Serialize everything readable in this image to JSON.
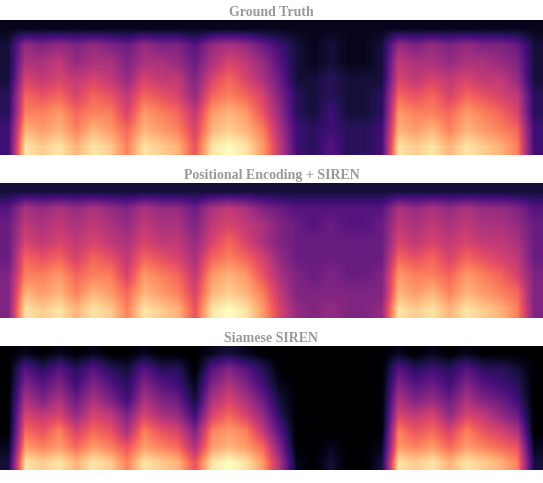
{
  "chart_data": [
    {
      "type": "heatmap",
      "title": "Ground Truth",
      "tick_labels": false,
      "cells": [
        [
          0.2,
          0.9,
          0.85,
          0.9,
          0.8,
          0.9,
          0.85,
          0.7,
          0.9,
          0.85,
          0.8,
          0.6,
          0.9,
          0.95,
          0.9,
          0.75,
          0.5,
          0.2,
          0.15,
          0.25,
          0.15,
          0.15,
          0.2,
          0.9,
          0.85,
          0.9,
          0.8,
          0.9,
          0.85,
          0.8,
          0.7,
          0.2
        ],
        [
          0.2,
          0.8,
          0.75,
          0.8,
          0.7,
          0.8,
          0.75,
          0.65,
          0.8,
          0.75,
          0.7,
          0.55,
          0.8,
          0.85,
          0.8,
          0.7,
          0.45,
          0.2,
          0.15,
          0.2,
          0.15,
          0.15,
          0.2,
          0.8,
          0.75,
          0.8,
          0.7,
          0.8,
          0.75,
          0.7,
          0.65,
          0.2
        ],
        [
          0.15,
          0.7,
          0.7,
          0.75,
          0.65,
          0.7,
          0.7,
          0.55,
          0.75,
          0.7,
          0.65,
          0.5,
          0.75,
          0.8,
          0.75,
          0.6,
          0.4,
          0.15,
          0.1,
          0.2,
          0.1,
          0.1,
          0.15,
          0.75,
          0.7,
          0.7,
          0.65,
          0.75,
          0.7,
          0.65,
          0.55,
          0.15
        ],
        [
          0.15,
          0.65,
          0.6,
          0.65,
          0.55,
          0.65,
          0.6,
          0.5,
          0.65,
          0.6,
          0.55,
          0.4,
          0.65,
          0.7,
          0.65,
          0.55,
          0.35,
          0.15,
          0.1,
          0.15,
          0.1,
          0.1,
          0.15,
          0.65,
          0.6,
          0.65,
          0.55,
          0.65,
          0.6,
          0.55,
          0.5,
          0.15
        ],
        [
          0.1,
          0.55,
          0.5,
          0.55,
          0.5,
          0.55,
          0.5,
          0.4,
          0.55,
          0.5,
          0.5,
          0.35,
          0.55,
          0.65,
          0.55,
          0.45,
          0.3,
          0.1,
          0.1,
          0.15,
          0.1,
          0.1,
          0.1,
          0.55,
          0.5,
          0.55,
          0.5,
          0.55,
          0.5,
          0.5,
          0.4,
          0.1
        ],
        [
          0.1,
          0.45,
          0.45,
          0.5,
          0.4,
          0.45,
          0.45,
          0.35,
          0.45,
          0.45,
          0.4,
          0.3,
          0.45,
          0.55,
          0.5,
          0.4,
          0.25,
          0.1,
          0.05,
          0.1,
          0.05,
          0.05,
          0.1,
          0.5,
          0.45,
          0.45,
          0.4,
          0.45,
          0.45,
          0.4,
          0.35,
          0.1
        ],
        [
          0.1,
          0.4,
          0.35,
          0.4,
          0.35,
          0.4,
          0.35,
          0.3,
          0.4,
          0.35,
          0.35,
          0.25,
          0.4,
          0.45,
          0.4,
          0.3,
          0.2,
          0.1,
          0.05,
          0.1,
          0.05,
          0.05,
          0.1,
          0.4,
          0.35,
          0.4,
          0.35,
          0.4,
          0.35,
          0.35,
          0.3,
          0.1
        ],
        [
          0.05,
          0.05,
          0.05,
          0.05,
          0.05,
          0.05,
          0.05,
          0.05,
          0.05,
          0.05,
          0.05,
          0.05,
          0.05,
          0.05,
          0.05,
          0.05,
          0.05,
          0.05,
          0.05,
          0.05,
          0.05,
          0.05,
          0.05,
          0.05,
          0.05,
          0.05,
          0.05,
          0.05,
          0.05,
          0.05,
          0.05,
          0.05
        ]
      ]
    },
    {
      "type": "heatmap",
      "title": "Positional Encoding + SIREN",
      "tick_labels": false,
      "cells": [
        [
          0.35,
          0.9,
          0.85,
          0.9,
          0.8,
          0.9,
          0.85,
          0.7,
          0.9,
          0.85,
          0.8,
          0.6,
          0.9,
          0.95,
          0.9,
          0.75,
          0.55,
          0.4,
          0.35,
          0.4,
          0.35,
          0.35,
          0.4,
          0.9,
          0.85,
          0.9,
          0.8,
          0.9,
          0.85,
          0.8,
          0.7,
          0.35
        ],
        [
          0.35,
          0.8,
          0.75,
          0.8,
          0.7,
          0.8,
          0.75,
          0.65,
          0.8,
          0.75,
          0.7,
          0.55,
          0.8,
          0.85,
          0.8,
          0.7,
          0.5,
          0.35,
          0.35,
          0.35,
          0.35,
          0.35,
          0.35,
          0.8,
          0.75,
          0.8,
          0.7,
          0.8,
          0.75,
          0.7,
          0.65,
          0.35
        ],
        [
          0.35,
          0.7,
          0.7,
          0.75,
          0.65,
          0.7,
          0.7,
          0.55,
          0.75,
          0.7,
          0.65,
          0.5,
          0.75,
          0.8,
          0.75,
          0.6,
          0.45,
          0.35,
          0.3,
          0.35,
          0.3,
          0.3,
          0.35,
          0.75,
          0.7,
          0.7,
          0.65,
          0.75,
          0.7,
          0.65,
          0.55,
          0.35
        ],
        [
          0.3,
          0.65,
          0.6,
          0.65,
          0.55,
          0.65,
          0.6,
          0.5,
          0.65,
          0.6,
          0.55,
          0.45,
          0.65,
          0.7,
          0.65,
          0.55,
          0.4,
          0.3,
          0.3,
          0.3,
          0.3,
          0.3,
          0.3,
          0.65,
          0.6,
          0.65,
          0.55,
          0.65,
          0.6,
          0.55,
          0.5,
          0.3
        ],
        [
          0.3,
          0.55,
          0.5,
          0.55,
          0.5,
          0.55,
          0.5,
          0.45,
          0.55,
          0.5,
          0.5,
          0.4,
          0.55,
          0.65,
          0.55,
          0.45,
          0.35,
          0.3,
          0.3,
          0.3,
          0.3,
          0.3,
          0.3,
          0.55,
          0.5,
          0.55,
          0.5,
          0.55,
          0.5,
          0.5,
          0.45,
          0.3
        ],
        [
          0.3,
          0.5,
          0.45,
          0.5,
          0.45,
          0.5,
          0.45,
          0.4,
          0.5,
          0.45,
          0.45,
          0.35,
          0.5,
          0.55,
          0.5,
          0.45,
          0.35,
          0.3,
          0.25,
          0.3,
          0.25,
          0.25,
          0.3,
          0.5,
          0.45,
          0.5,
          0.45,
          0.5,
          0.45,
          0.45,
          0.4,
          0.3
        ],
        [
          0.25,
          0.45,
          0.4,
          0.45,
          0.4,
          0.45,
          0.4,
          0.35,
          0.45,
          0.4,
          0.4,
          0.3,
          0.45,
          0.5,
          0.45,
          0.35,
          0.3,
          0.25,
          0.25,
          0.25,
          0.25,
          0.25,
          0.25,
          0.45,
          0.4,
          0.45,
          0.4,
          0.45,
          0.4,
          0.4,
          0.35,
          0.25
        ],
        [
          0.1,
          0.1,
          0.1,
          0.1,
          0.1,
          0.1,
          0.1,
          0.1,
          0.1,
          0.1,
          0.1,
          0.1,
          0.1,
          0.1,
          0.1,
          0.1,
          0.1,
          0.1,
          0.1,
          0.1,
          0.1,
          0.1,
          0.1,
          0.1,
          0.1,
          0.1,
          0.1,
          0.1,
          0.1,
          0.1,
          0.1,
          0.1
        ]
      ]
    },
    {
      "type": "heatmap",
      "title": "Siamese SIREN",
      "tick_labels": false,
      "cells": [
        [
          0.1,
          0.9,
          0.85,
          0.9,
          0.8,
          0.9,
          0.85,
          0.7,
          0.9,
          0.85,
          0.8,
          0.6,
          0.9,
          0.95,
          0.9,
          0.75,
          0.45,
          0.05,
          0.0,
          0.1,
          0.0,
          0.0,
          0.1,
          0.9,
          0.85,
          0.9,
          0.8,
          0.9,
          0.85,
          0.8,
          0.7,
          0.1
        ],
        [
          0.05,
          0.75,
          0.7,
          0.75,
          0.65,
          0.75,
          0.7,
          0.6,
          0.75,
          0.7,
          0.65,
          0.45,
          0.75,
          0.8,
          0.75,
          0.65,
          0.35,
          0.0,
          0.0,
          0.05,
          0.0,
          0.0,
          0.05,
          0.75,
          0.7,
          0.75,
          0.65,
          0.75,
          0.7,
          0.65,
          0.6,
          0.05
        ],
        [
          0.0,
          0.65,
          0.6,
          0.7,
          0.55,
          0.65,
          0.6,
          0.45,
          0.7,
          0.6,
          0.55,
          0.35,
          0.7,
          0.75,
          0.7,
          0.5,
          0.25,
          0.0,
          0.0,
          0.0,
          0.0,
          0.0,
          0.0,
          0.7,
          0.6,
          0.65,
          0.55,
          0.7,
          0.6,
          0.55,
          0.45,
          0.0
        ],
        [
          0.0,
          0.55,
          0.5,
          0.55,
          0.4,
          0.55,
          0.5,
          0.35,
          0.55,
          0.45,
          0.4,
          0.2,
          0.55,
          0.65,
          0.55,
          0.4,
          0.15,
          0.0,
          0.0,
          0.0,
          0.0,
          0.0,
          0.0,
          0.55,
          0.5,
          0.55,
          0.4,
          0.55,
          0.5,
          0.4,
          0.3,
          0.0
        ],
        [
          0.0,
          0.45,
          0.35,
          0.45,
          0.3,
          0.45,
          0.35,
          0.2,
          0.45,
          0.35,
          0.3,
          0.1,
          0.45,
          0.55,
          0.45,
          0.3,
          0.1,
          0.0,
          0.0,
          0.0,
          0.0,
          0.0,
          0.0,
          0.45,
          0.35,
          0.4,
          0.3,
          0.45,
          0.35,
          0.3,
          0.2,
          0.0
        ],
        [
          0.0,
          0.35,
          0.25,
          0.35,
          0.2,
          0.35,
          0.25,
          0.15,
          0.35,
          0.25,
          0.2,
          0.05,
          0.35,
          0.45,
          0.35,
          0.2,
          0.05,
          0.0,
          0.0,
          0.0,
          0.0,
          0.0,
          0.0,
          0.35,
          0.25,
          0.3,
          0.2,
          0.35,
          0.25,
          0.2,
          0.15,
          0.0
        ],
        [
          0.0,
          0.25,
          0.15,
          0.25,
          0.15,
          0.25,
          0.15,
          0.1,
          0.25,
          0.15,
          0.15,
          0.0,
          0.25,
          0.35,
          0.25,
          0.15,
          0.0,
          0.0,
          0.0,
          0.0,
          0.0,
          0.0,
          0.0,
          0.25,
          0.15,
          0.2,
          0.15,
          0.25,
          0.15,
          0.15,
          0.1,
          0.0
        ],
        [
          0.0,
          0.05,
          0.0,
          0.05,
          0.0,
          0.05,
          0.0,
          0.0,
          0.05,
          0.0,
          0.0,
          0.0,
          0.05,
          0.1,
          0.05,
          0.0,
          0.0,
          0.0,
          0.0,
          0.0,
          0.0,
          0.0,
          0.0,
          0.05,
          0.0,
          0.05,
          0.0,
          0.05,
          0.0,
          0.0,
          0.0,
          0.0
        ]
      ]
    }
  ]
}
